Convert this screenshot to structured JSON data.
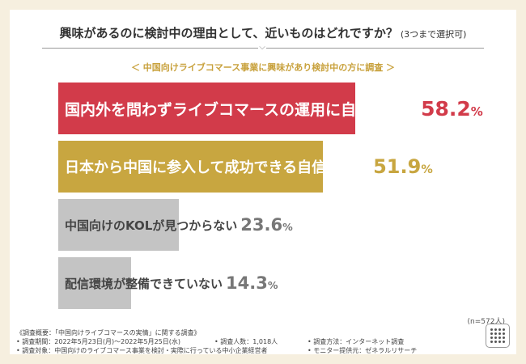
{
  "title": "興味があるのに検討中の理由として、近いものはどれですか？",
  "title_note": "(3つまで選択可)",
  "subtitle": "＜ 中国向けライブコマース事業に興味があり検討中の方に調査 ＞",
  "chart_data": {
    "type": "bar",
    "orientation": "horizontal",
    "categories": [
      "国内外を問わずライブコマースの運用に自信がない",
      "日本から中国に参入して成功できる自信がない",
      "中国向けのKOLが見つからない",
      "配信環境が整備できていない"
    ],
    "values": [
      58.2,
      51.9,
      23.6,
      14.3
    ],
    "value_unit": "%",
    "colors": [
      "#d23b4a",
      "#c8a640",
      "#c4c4c4",
      "#c4c4c4"
    ],
    "value_colors": [
      "#d23b4a",
      "#c8a640",
      "#777777",
      "#777777"
    ],
    "text_colors": [
      "#ffffff",
      "#ffffff",
      "#444444",
      "#444444"
    ],
    "xlim": [
      0,
      100
    ]
  },
  "n_label": "(n=572人)",
  "footer": {
    "line1": "《調査概要：「中国向けライブコマースの実情」に関する調査》",
    "period": "• 調査期間：2022年5月23日(月)～2022年5月25日(水)",
    "count": "• 調査人数：1,018人",
    "method": "• 調査方法：インターネット調査",
    "target": "• 調査対象：中国向けのライブコマース事業を検討・実際に行っている中小企業経営者",
    "monitor": "• モニター提供元：ゼネラルリサーチ"
  }
}
